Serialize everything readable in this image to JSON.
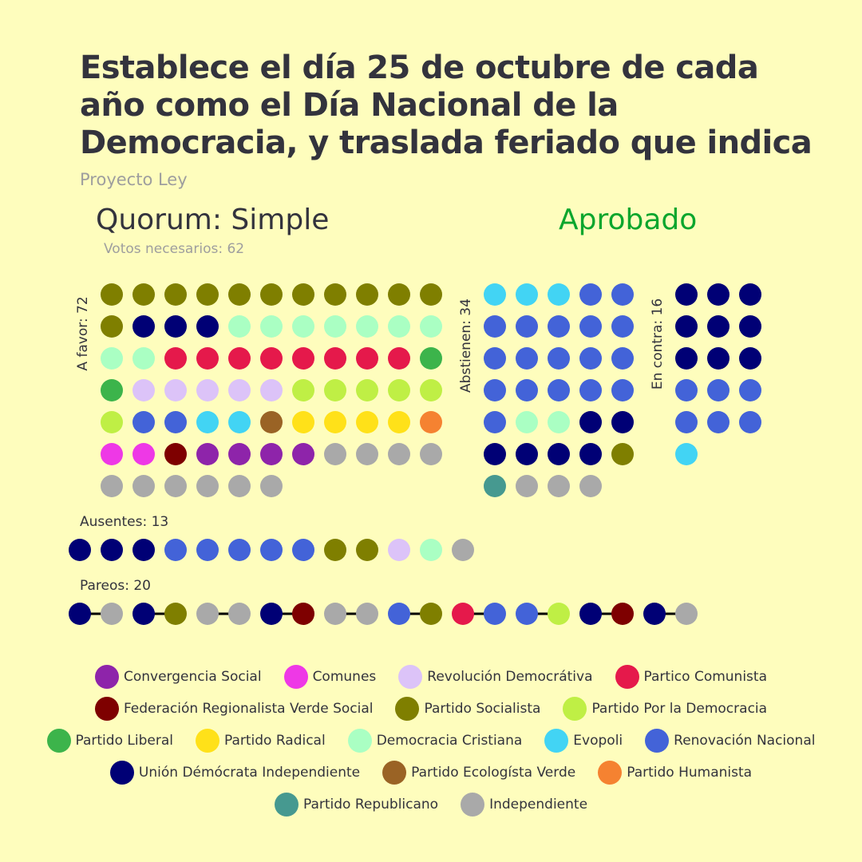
{
  "title": "Establece el día 25 de octubre de cada año como el Día Nacional de la Democracia, y traslada feriado que indica",
  "subtitle": "Proyecto Ley",
  "quorum": "Quorum: Simple",
  "votes_needed": "Votos necesarios: 62",
  "result": "Aprobado",
  "colors": {
    "background": "#FEFDBD",
    "text": "#33333D",
    "muted": "#9E9E9E",
    "approved": "#0BA62D"
  },
  "chart_data": {
    "type": "dot-matrix",
    "parties": [
      {
        "key": "CS",
        "name": "Convergencia Social",
        "color": "#8E24AA"
      },
      {
        "key": "COM",
        "name": "Comunes",
        "color": "#EE38E6"
      },
      {
        "key": "RD",
        "name": "Revolución Democrátiva",
        "color": "#DCC3F8"
      },
      {
        "key": "PC",
        "name": "Partico Comunista",
        "color": "#E5194B"
      },
      {
        "key": "FRVS",
        "name": "Federación Regionalista Verde Social",
        "color": "#7E0000"
      },
      {
        "key": "PS",
        "name": "Partido Socialista",
        "color": "#7F7F00"
      },
      {
        "key": "PPD",
        "name": "Partido Por la Democracia",
        "color": "#BFEF45"
      },
      {
        "key": "PL",
        "name": "Partido Liberal",
        "color": "#3CB44B"
      },
      {
        "key": "PR",
        "name": "Partido Radical",
        "color": "#FFE119"
      },
      {
        "key": "DC",
        "name": "Democracia Cristiana",
        "color": "#AAFFC3"
      },
      {
        "key": "EVO",
        "name": "Evopoli",
        "color": "#42D4F4"
      },
      {
        "key": "RN",
        "name": "Renovación Nacional",
        "color": "#4363D8"
      },
      {
        "key": "UDI",
        "name": "Unión Démócrata Independiente",
        "color": "#000075"
      },
      {
        "key": "PEV",
        "name": "Partido Ecologísta Verde",
        "color": "#9A6325"
      },
      {
        "key": "PH",
        "name": "Partido Humanista",
        "color": "#F58231"
      },
      {
        "key": "REP",
        "name": "Partido Republicano",
        "color": "#469990"
      },
      {
        "key": "IND",
        "name": "Independiente",
        "color": "#A9A9A9"
      }
    ],
    "groups": {
      "favor": {
        "label": "A favor: 72",
        "count": 72,
        "columns": 11,
        "seats": [
          "PS",
          "PS",
          "PS",
          "PS",
          "PS",
          "PS",
          "PS",
          "PS",
          "PS",
          "PS",
          "PS",
          "PS",
          "UDI",
          "UDI",
          "UDI",
          "DC",
          "DC",
          "DC",
          "DC",
          "DC",
          "DC",
          "DC",
          "DC",
          "DC",
          "PC",
          "PC",
          "PC",
          "PC",
          "PC",
          "PC",
          "PC",
          "PC",
          "PL",
          "PL",
          "RD",
          "RD",
          "RD",
          "RD",
          "RD",
          "PPD",
          "PPD",
          "PPD",
          "PPD",
          "PPD",
          "PPD",
          "RN",
          "RN",
          "EVO",
          "EVO",
          "PEV",
          "PR",
          "PR",
          "PR",
          "PR",
          "PH",
          "COM",
          "COM",
          "FRVS",
          "CS",
          "CS",
          "CS",
          "CS",
          "IND",
          "IND",
          "IND",
          "IND",
          "IND",
          "IND",
          "IND",
          "IND",
          "IND",
          "IND"
        ]
      },
      "abstain": {
        "label": "Abstienen: 34",
        "count": 34,
        "columns": 5,
        "seats": [
          "EVO",
          "EVO",
          "EVO",
          "RN",
          "RN",
          "RN",
          "RN",
          "RN",
          "RN",
          "RN",
          "RN",
          "RN",
          "RN",
          "RN",
          "RN",
          "RN",
          "RN",
          "RN",
          "RN",
          "RN",
          "RN",
          "DC",
          "DC",
          "UDI",
          "UDI",
          "UDI",
          "UDI",
          "UDI",
          "UDI",
          "PS",
          "REP",
          "IND",
          "IND",
          "IND"
        ]
      },
      "against": {
        "label": "En contra: 16",
        "count": 16,
        "columns": 3,
        "seats": [
          "UDI",
          "UDI",
          "UDI",
          "UDI",
          "UDI",
          "UDI",
          "UDI",
          "UDI",
          "UDI",
          "RN",
          "RN",
          "RN",
          "RN",
          "RN",
          "RN",
          "EVO"
        ]
      },
      "absent": {
        "label": "Ausentes: 13",
        "count": 13,
        "seats": [
          "UDI",
          "UDI",
          "UDI",
          "RN",
          "RN",
          "RN",
          "RN",
          "RN",
          "PS",
          "PS",
          "RD",
          "DC",
          "IND"
        ]
      },
      "pairs": {
        "label": "Pareos: 20",
        "count": 20,
        "seats": [
          "UDI",
          "IND",
          "UDI",
          "PS",
          "IND",
          "IND",
          "UDI",
          "FRVS",
          "IND",
          "IND",
          "RN",
          "PS",
          "PC",
          "RN",
          "RN",
          "PPD",
          "UDI",
          "FRVS",
          "UDI",
          "IND"
        ]
      }
    }
  },
  "legend": [
    [
      "CS",
      "COM",
      "RD",
      "PC"
    ],
    [
      "FRVS",
      "PS",
      "PPD"
    ],
    [
      "PL",
      "PR",
      "DC",
      "EVO",
      "RN"
    ],
    [
      "UDI",
      "PEV",
      "PH"
    ],
    [
      "REP",
      "IND"
    ]
  ]
}
